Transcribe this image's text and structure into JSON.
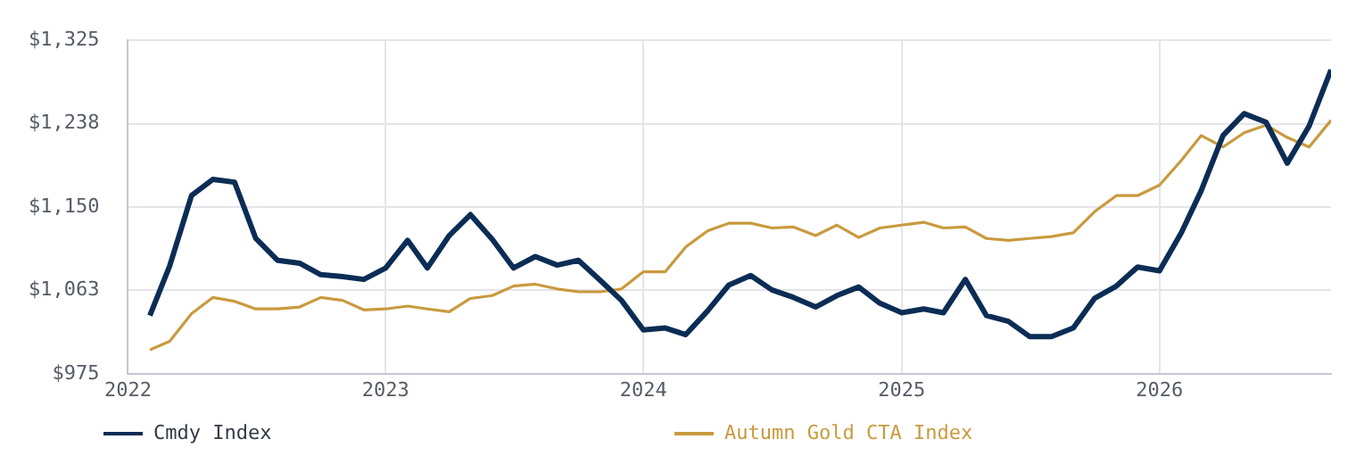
{
  "chart_data": {
    "type": "line",
    "x": [
      "2022-02",
      "2022-03",
      "2022-04",
      "2022-05",
      "2022-06",
      "2022-07",
      "2022-08",
      "2022-09",
      "2022-10",
      "2022-11",
      "2022-12",
      "2023-01",
      "2023-02",
      "2023-03",
      "2023-04",
      "2023-05",
      "2023-06",
      "2023-07",
      "2023-08",
      "2023-09",
      "2023-10",
      "2023-11",
      "2023-12",
      "2024-01",
      "2024-02",
      "2024-03",
      "2024-04",
      "2024-05",
      "2024-06",
      "2024-07",
      "2024-08",
      "2024-09",
      "2024-10",
      "2024-11",
      "2024-12",
      "2025-01",
      "2025-02",
      "2025-03",
      "2025-04",
      "2025-05",
      "2025-06",
      "2025-07",
      "2025-08",
      "2025-09",
      "2025-10",
      "2025-11",
      "2025-12",
      "2026-01",
      "2026-02",
      "2026-03",
      "2026-04",
      "2026-05",
      "2026-06",
      "2026-07",
      "2026-08",
      "2026-09"
    ],
    "series": [
      {
        "name": "Cmdy Index",
        "color": "#0b2d55",
        "values": [
          1036,
          1088,
          1162,
          1179,
          1176,
          1117,
          1094,
          1091,
          1079,
          1077,
          1074,
          1086,
          1115,
          1086,
          1120,
          1142,
          1116,
          1086,
          1098,
          1089,
          1094,
          1073,
          1052,
          1021,
          1023,
          1016,
          1041,
          1068,
          1078,
          1063,
          1055,
          1045,
          1057,
          1066,
          1049,
          1039,
          1043,
          1039,
          1074,
          1036,
          1030,
          1014,
          1014,
          1023,
          1054,
          1067,
          1087,
          1083,
          1123,
          1167,
          1225,
          1248,
          1239,
          1196,
          1235,
          1294
        ]
      },
      {
        "name": "Autumn Gold CTA Index",
        "color": "#c99a3e",
        "values": [
          1000,
          1009,
          1038,
          1055,
          1051,
          1043,
          1043,
          1045,
          1055,
          1052,
          1042,
          1043,
          1046,
          1043,
          1040,
          1054,
          1057,
          1067,
          1069,
          1064,
          1061,
          1061,
          1064,
          1082,
          1082,
          1108,
          1125,
          1133,
          1133,
          1128,
          1129,
          1120,
          1131,
          1118,
          1128,
          1131,
          1134,
          1128,
          1129,
          1117,
          1115,
          1117,
          1119,
          1123,
          1145,
          1162,
          1162,
          1173,
          1199,
          1225,
          1213,
          1228,
          1236,
          1223,
          1213,
          1241
        ]
      }
    ],
    "xlim": [
      "2022",
      "2026-09"
    ],
    "xticks": [
      "2022",
      "2023",
      "2024",
      "2025",
      "2026"
    ],
    "ylim": [
      975,
      1325
    ],
    "yticks": [
      {
        "value": 975,
        "label": "$975"
      },
      {
        "value": 1062.5,
        "label": "$1,063"
      },
      {
        "value": 1150,
        "label": "$1,150"
      },
      {
        "value": 1237.5,
        "label": "$1,238"
      },
      {
        "value": 1325,
        "label": "$1,325"
      }
    ],
    "grid": true,
    "legend": "bottom",
    "marker": "none",
    "line_style": "solid"
  }
}
